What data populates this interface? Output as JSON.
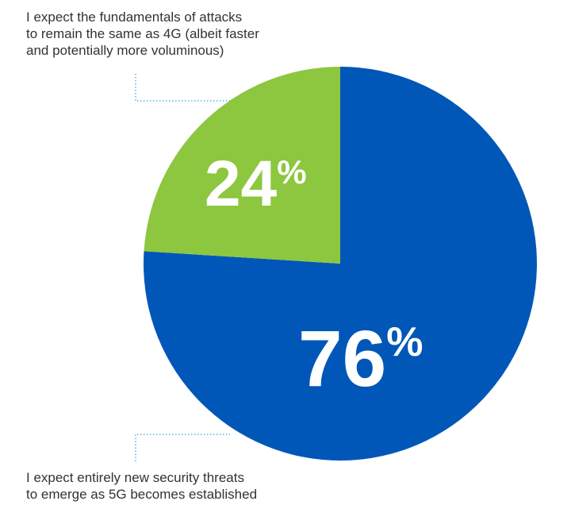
{
  "chart_data": {
    "type": "pie",
    "slices": [
      {
        "label_lines": [
          "I expect the fundamentals of attacks",
          "to remain the same as 4G (albeit faster",
          "and potentially more voluminous)"
        ],
        "value": 24,
        "value_text": "24",
        "unit": "%",
        "color": "#8dc63f"
      },
      {
        "label_lines": [
          "I expect entirely new security threats",
          "to emerge as 5G becomes established"
        ],
        "value": 76,
        "value_text": "76",
        "unit": "%",
        "color": "#0057b8"
      }
    ],
    "leader_line_color": "#29a8e0"
  }
}
